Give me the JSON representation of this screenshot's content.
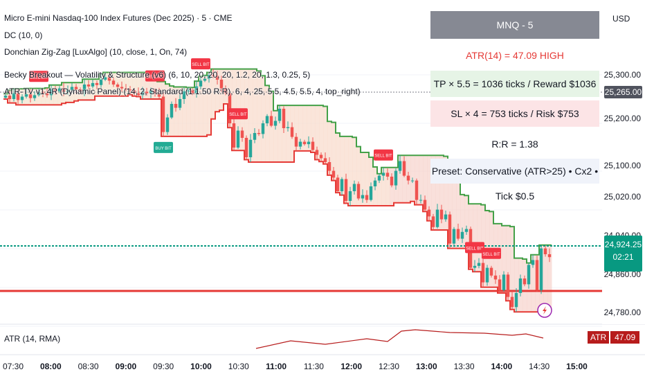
{
  "header": {
    "symbol_title": "Micro E-mini Nasdaq-100 Index Futures (Dec 2025) · 5 · CME",
    "indicators": [
      "DC (10, 0)",
      "Donchian Zig-Zag [LuxAlgo] (10, close, 1, On, 74)",
      "Becky Breakout — Volatility & Structure (v6) (6, 10, 20, 20, 20, 1.2, 20, 1.3, 0.25, 5)",
      "ATR-TV v1.4R (Dynamic Panel) (14, 2, Standard (1:1.50 R:R), 6, 4, 25, 5.5, 4.5, 5.5, 4, top_right)"
    ]
  },
  "panel": {
    "title": "MNQ - 5",
    "atr_line": "ATR(14) = 47.09  HIGH",
    "tp_line": "TP × 5.5 = 1036 ticks / Reward $1036",
    "sl_line": "SL × 4 = 753 ticks / Risk $753",
    "rr_line": "R:R = 1.38",
    "preset_line": "Preset: Conservative (ATR>25)  •  Cx2  •  Tick $0.5"
  },
  "price_scale": {
    "currency": "USD",
    "ticks": [
      "25,300.00",
      "25,200.00",
      "25,100.00",
      "25,020.00",
      "24,940.00",
      "24,860.00",
      "24,780.00"
    ],
    "level_tag": "25,265.00",
    "last_price": "24,924.25",
    "countdown": "02:21"
  },
  "time_axis": [
    "07:30",
    "08:00",
    "08:30",
    "09:00",
    "09:30",
    "10:00",
    "10:30",
    "11:00",
    "11:30",
    "12:00",
    "12:30",
    "13:00",
    "13:30",
    "14:00",
    "14:30",
    "15:00"
  ],
  "atr_pane": {
    "legend": "ATR (14, RMA)",
    "tag_label": "ATR",
    "tag_value": "47.09"
  },
  "signals": {
    "sell": "SELL BIT",
    "buy": "BUY BIT"
  },
  "colors": {
    "up": "#26a69a",
    "down": "#ef5350",
    "upper_band": "#43a047",
    "lower_band": "#e53935",
    "current_line": "#089981",
    "panel_header": "#868993"
  },
  "chart_data": {
    "type": "candlestick",
    "close": [
      25257,
      25250,
      25262,
      25248,
      25255,
      25260,
      25252,
      25258,
      25265,
      25262,
      25258,
      25270,
      25266,
      25272,
      25265,
      25268,
      25275,
      25270,
      25266,
      25280,
      25276,
      25283,
      25279,
      25290,
      25295,
      25288,
      25280,
      25275,
      25272,
      25270,
      25268,
      25262,
      25258,
      25265,
      25262,
      25268,
      25262,
      25255,
      25182,
      25212,
      25240,
      25232,
      25250,
      25266,
      25268,
      25262,
      25276,
      25288,
      25292,
      25300,
      25298,
      25290,
      25272,
      25262,
      25200,
      25150,
      25185,
      25170,
      25130,
      25166,
      25180,
      25178,
      25200,
      25215,
      25195,
      25205,
      25230,
      25190,
      25192,
      25172,
      25152,
      25162,
      25157,
      25162,
      25145,
      25135,
      25128,
      25120,
      25102,
      25088,
      25060,
      25085,
      25040,
      25060,
      25075,
      25045,
      25052,
      25042,
      25070,
      25082,
      25092,
      25098,
      25090,
      25072,
      25102,
      25122,
      25092,
      25082,
      25082,
      25042,
      25042,
      25022,
      25008,
      24986,
      25022,
      25002,
      25012,
      24952,
      24982,
      24962,
      24976,
      24982,
      24902,
      24906,
      24912,
      24872,
      24902,
      24886,
      24878,
      24856,
      24888,
      24842,
      24821,
      24850,
      24880,
      24868,
      24908,
      24918,
      24856,
      24942,
      24930,
      24924
    ],
    "price_range": [
      24750,
      25340
    ]
  }
}
